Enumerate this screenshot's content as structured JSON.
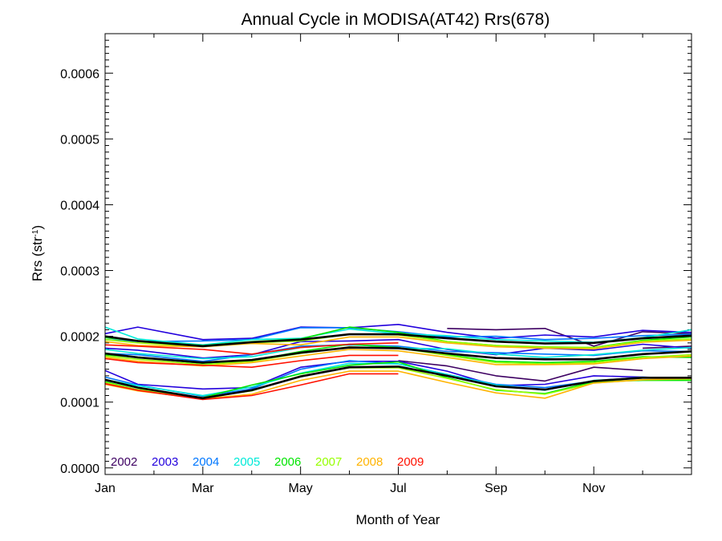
{
  "chart_data": {
    "type": "line",
    "title": "Annual Cycle in MODISA(AT42) Rrs(678)",
    "xlabel": "Month of Year",
    "ylabel_main": "Rrs (str",
    "ylabel_sup": "-1",
    "ylabel_close": ")",
    "xlim": [
      0,
      12
    ],
    "ylim": [
      -1e-05,
      0.00066
    ],
    "x_ticks": [
      {
        "value": 0,
        "label": "Jan"
      },
      {
        "value": 2,
        "label": "Mar"
      },
      {
        "value": 4,
        "label": "May"
      },
      {
        "value": 6,
        "label": "Jul"
      },
      {
        "value": 8,
        "label": "Sep"
      },
      {
        "value": 10,
        "label": "Nov"
      }
    ],
    "y_ticks": [
      {
        "value": 0.0,
        "label": "0.0000"
      },
      {
        "value": 0.0001,
        "label": "0.0001"
      },
      {
        "value": 0.0002,
        "label": "0.0002"
      },
      {
        "value": 0.0003,
        "label": "0.0003"
      },
      {
        "value": 0.0004,
        "label": "0.0004"
      },
      {
        "value": 0.0005,
        "label": "0.0005"
      },
      {
        "value": 0.0006,
        "label": "0.0006"
      }
    ],
    "x": [
      0.0,
      0.67,
      2.0,
      3.0,
      4.0,
      5.0,
      6.0,
      7.0,
      8.0,
      9.0,
      10.0,
      11.0,
      12.0
    ],
    "legend": [
      {
        "label": "2002",
        "color": "#3d0062"
      },
      {
        "label": "2003",
        "color": "#2200dd"
      },
      {
        "label": "2004",
        "color": "#0077ff"
      },
      {
        "label": "2005",
        "color": "#00ead8"
      },
      {
        "label": "2006",
        "color": "#00e400"
      },
      {
        "label": "2007",
        "color": "#96ff00"
      },
      {
        "label": "2008",
        "color": "#ffb300"
      },
      {
        "label": "2009",
        "color": "#ff1000"
      }
    ],
    "series": [
      {
        "color": "#3d0062",
        "group": "high",
        "values": [
          null,
          null,
          null,
          null,
          null,
          null,
          null,
          0.000212,
          0.00021,
          0.000212,
          0.000185,
          0.000207,
          0.000204
        ]
      },
      {
        "color": "#3d0062",
        "group": "mid",
        "values": [
          null,
          null,
          null,
          null,
          null,
          null,
          null,
          null,
          null,
          null,
          null,
          0.000182,
          0.000185
        ]
      },
      {
        "color": "#3d0062",
        "group": "low",
        "values": [
          null,
          null,
          null,
          null,
          null,
          null,
          0.000163,
          0.000155,
          0.00014,
          0.000132,
          0.000153,
          0.000148,
          null
        ]
      },
      {
        "color": "#2200dd",
        "group": "high",
        "values": [
          0.000204,
          0.000214,
          0.000195,
          0.000197,
          0.000214,
          0.000213,
          0.000218,
          0.000206,
          0.000197,
          0.000202,
          0.000199,
          0.000209,
          0.000206
        ]
      },
      {
        "color": "#2200dd",
        "group": "mid",
        "values": [
          0.000182,
          0.000179,
          0.000167,
          0.000172,
          0.000192,
          0.000193,
          0.000195,
          0.00018,
          0.000172,
          0.000182,
          0.000179,
          0.000188,
          0.000182
        ]
      },
      {
        "color": "#2200dd",
        "group": "low",
        "values": [
          0.000148,
          0.000127,
          0.00012,
          0.000122,
          0.000153,
          0.000162,
          0.000162,
          0.000147,
          0.000125,
          0.000127,
          0.00014,
          0.000138,
          0.000136
        ]
      },
      {
        "color": "#0077ff",
        "group": "high",
        "values": [
          0.000195,
          0.000192,
          0.000193,
          0.000195,
          0.000213,
          0.000213,
          0.000207,
          0.000199,
          0.0002,
          0.000195,
          0.000197,
          0.000201,
          0.000203
        ]
      },
      {
        "color": "#0077ff",
        "group": "mid",
        "values": [
          0.000174,
          0.000172,
          0.000162,
          0.000172,
          0.000185,
          0.000187,
          0.000185,
          0.000177,
          0.000175,
          0.000173,
          0.000171,
          0.000178,
          0.000177
        ]
      },
      {
        "color": "#0077ff",
        "group": "low",
        "values": [
          0.000138,
          0.000126,
          0.000109,
          0.00012,
          0.00015,
          0.000163,
          0.000158,
          0.000142,
          0.000127,
          0.000122,
          0.000132,
          0.000138,
          0.000135
        ]
      },
      {
        "color": "#00ead8",
        "group": "high",
        "values": [
          0.000214,
          0.000196,
          0.000187,
          0.000195,
          0.000197,
          0.000211,
          0.000204,
          0.000201,
          0.000195,
          0.000193,
          0.000191,
          0.000198,
          0.00021
        ]
      },
      {
        "color": "#00ead8",
        "group": "mid",
        "values": [
          0.00018,
          0.000174,
          0.000166,
          0.000169,
          0.000183,
          0.000188,
          0.000182,
          0.000181,
          0.000173,
          0.000168,
          0.000172,
          0.000179,
          0.000183
        ]
      },
      {
        "color": "#00ead8",
        "group": "low",
        "values": [
          0.000134,
          0.000125,
          0.00011,
          0.000123,
          0.000144,
          0.000159,
          0.000158,
          0.000142,
          0.000126,
          0.000118,
          0.000133,
          0.000137,
          0.000137
        ]
      },
      {
        "color": "#00e400",
        "group": "high",
        "values": [
          0.000198,
          0.000193,
          0.000186,
          0.000192,
          0.000196,
          0.000214,
          0.000206,
          0.000192,
          0.000186,
          0.000183,
          0.000183,
          0.000194,
          0.000199
        ]
      },
      {
        "color": "#00e400",
        "group": "mid",
        "values": [
          0.000172,
          0.000168,
          0.000159,
          0.000163,
          0.000177,
          0.000188,
          0.000183,
          0.000172,
          0.000162,
          0.00016,
          0.000162,
          0.000169,
          0.000168
        ]
      },
      {
        "color": "#00e400",
        "group": "low",
        "values": [
          0.000131,
          0.000119,
          0.000107,
          0.000126,
          0.000143,
          0.000156,
          0.000161,
          0.000137,
          0.000118,
          0.000113,
          0.000131,
          0.000133,
          0.000133
        ]
      },
      {
        "color": "#96ff00",
        "group": "high",
        "values": [
          0.000195,
          0.00019,
          0.000184,
          0.00019,
          0.000193,
          0.000203,
          0.000202,
          0.000192,
          0.000186,
          0.000184,
          0.000183,
          0.000193,
          0.000196
        ]
      },
      {
        "color": "#96ff00",
        "group": "mid",
        "values": [
          0.00017,
          0.000165,
          0.000157,
          0.000162,
          0.000174,
          0.000184,
          0.000182,
          0.000171,
          0.00016,
          0.000158,
          0.00016,
          0.000168,
          0.000172
        ]
      },
      {
        "color": "#96ff00",
        "group": "low",
        "values": [
          0.00013,
          0.000119,
          0.000107,
          0.000117,
          0.00014,
          0.000152,
          0.000152,
          0.000136,
          0.000119,
          0.000112,
          0.000129,
          0.000134,
          0.000135
        ]
      },
      {
        "color": "#ffb300",
        "group": "high",
        "values": [
          0.000192,
          0.000186,
          0.000184,
          0.000189,
          0.000187,
          0.000199,
          0.000199,
          0.00019,
          0.000184,
          0.000182,
          0.000181,
          0.000191,
          0.000194
        ]
      },
      {
        "color": "#ffb300",
        "group": "mid",
        "values": [
          0.000168,
          0.000162,
          0.000155,
          0.00016,
          0.00017,
          0.00018,
          0.000178,
          0.000168,
          0.000157,
          0.000157,
          0.000158,
          0.000166,
          0.00017
        ]
      },
      {
        "color": "#ffb300",
        "group": "low",
        "values": [
          0.000127,
          0.000117,
          0.000105,
          0.000112,
          0.000133,
          0.000147,
          0.000147,
          0.00013,
          0.000114,
          0.000106,
          0.000129,
          0.000134,
          0.000136
        ]
      },
      {
        "color": "#ff1000",
        "group": "high",
        "values": [
          0.000187,
          0.000185,
          0.00018,
          0.000173,
          0.000183,
          0.000188,
          0.00019,
          null,
          null,
          null,
          null,
          null,
          null
        ]
      },
      {
        "color": "#ff1000",
        "group": "mid",
        "values": [
          0.000166,
          0.00016,
          0.000156,
          0.000153,
          0.000163,
          0.000171,
          0.000171,
          null,
          null,
          null,
          null,
          null,
          null
        ]
      },
      {
        "color": "#ff1000",
        "group": "low",
        "values": [
          0.000128,
          0.000118,
          0.000104,
          0.00011,
          0.000126,
          0.000143,
          0.000143,
          null,
          null,
          null,
          null,
          null,
          null
        ]
      },
      {
        "color": "#000000",
        "group": "climatology-high",
        "values": [
          0.0002,
          0.000193,
          0.000185,
          0.000191,
          0.000195,
          0.000203,
          0.000203,
          0.000197,
          0.000192,
          0.000189,
          0.00019,
          0.000197,
          0.000201
        ]
      },
      {
        "color": "#000000",
        "group": "climatology-mid",
        "values": [
          0.000174,
          0.000168,
          0.00016,
          0.000164,
          0.000175,
          0.000183,
          0.000182,
          0.000174,
          0.000167,
          0.000165,
          0.000165,
          0.000173,
          0.000177
        ]
      },
      {
        "color": "#000000",
        "group": "climatology-low",
        "values": [
          0.000134,
          0.000122,
          0.000106,
          0.000118,
          0.000139,
          0.000153,
          0.000154,
          0.00014,
          0.000124,
          0.000119,
          0.000132,
          0.000137,
          0.000137
        ]
      }
    ]
  }
}
